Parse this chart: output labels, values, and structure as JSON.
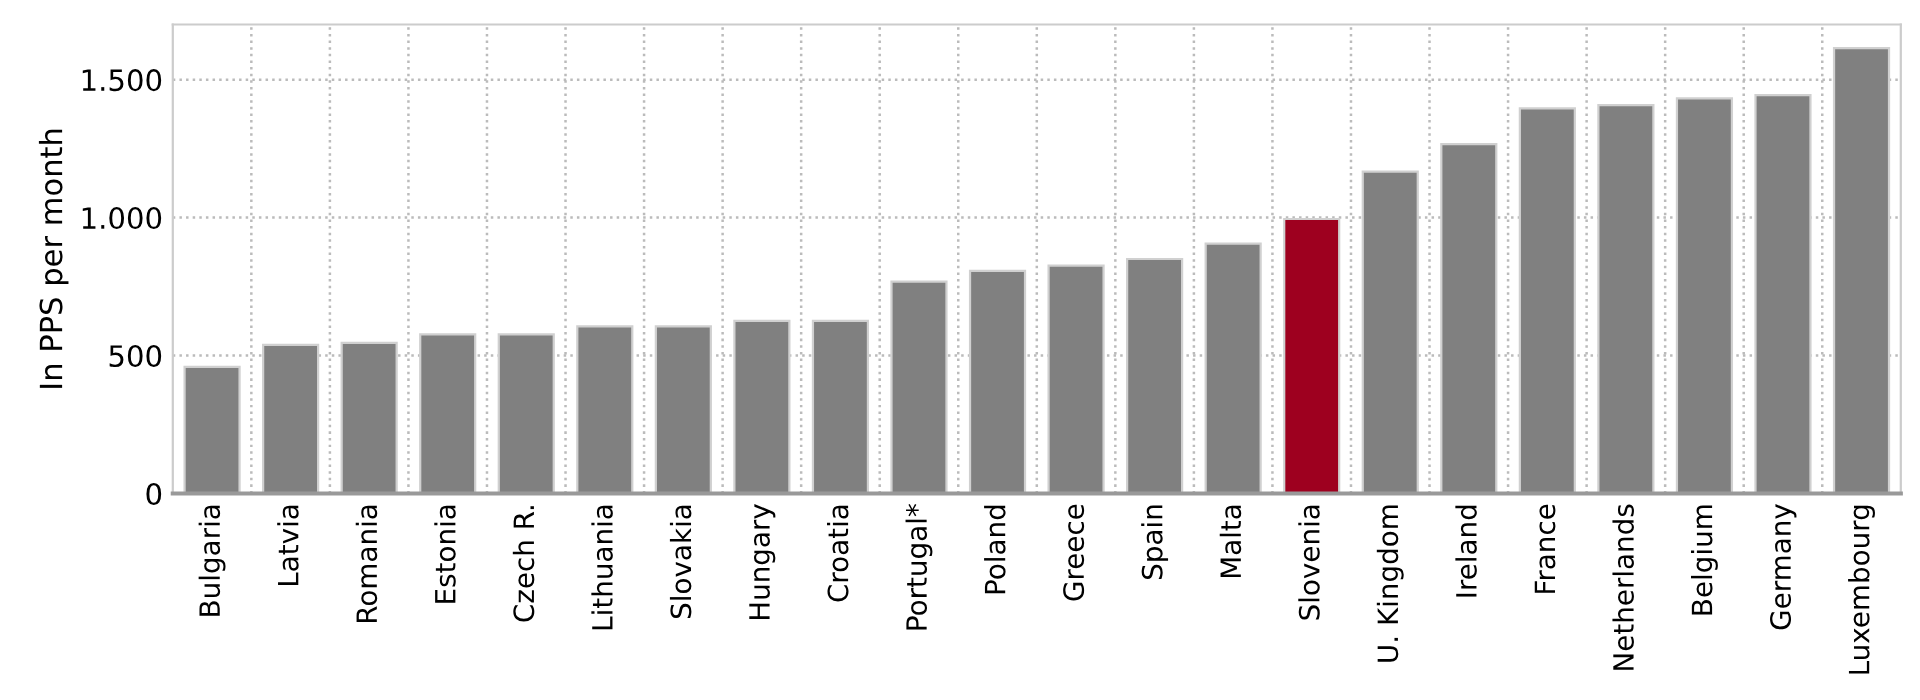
{
  "chart_data": {
    "type": "bar",
    "ylabel": "In PPS per month",
    "categories": [
      "Bulgaria",
      "Latvia",
      "Romania",
      "Estonia",
      "Czech R.",
      "Lithuania",
      "Slovakia",
      "Hungary",
      "Croatia",
      "Portugal*",
      "Poland",
      "Greece",
      "Spain",
      "Malta",
      "Slovenia",
      "U. Kingdom",
      "Ireland",
      "France",
      "Netherlands",
      "Belgium",
      "Germany",
      "Luxembourg"
    ],
    "values": [
      459,
      539,
      546,
      577,
      577,
      606,
      606,
      626,
      626,
      768,
      807,
      826,
      850,
      906,
      995,
      1167,
      1266,
      1396,
      1408,
      1432,
      1444,
      1614
    ],
    "colors": [
      "#808080",
      "#808080",
      "#808080",
      "#808080",
      "#808080",
      "#808080",
      "#808080",
      "#808080",
      "#808080",
      "#808080",
      "#808080",
      "#808080",
      "#808080",
      "#808080",
      "#9e001f",
      "#808080",
      "#808080",
      "#808080",
      "#808080",
      "#808080",
      "#808080",
      "#808080"
    ],
    "ylim": [
      0,
      1700
    ],
    "yticks": [
      0,
      500,
      {
        "value": 1000,
        "label": "1.000"
      },
      {
        "value": 1500,
        "label": "1.500"
      }
    ],
    "grid": true
  }
}
